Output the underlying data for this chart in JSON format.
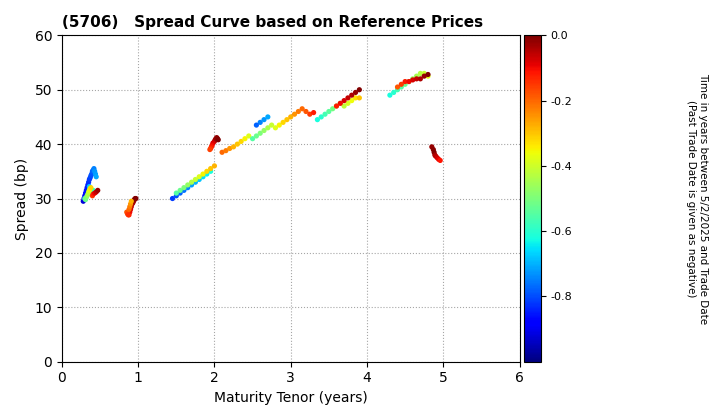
{
  "title": "(5706)   Spread Curve based on Reference Prices",
  "xlabel": "Maturity Tenor (years)",
  "ylabel": "Spread (bp)",
  "colorbar_label": "Time in years between 5/2/2025 and Trade Date\n(Past Trade Date is given as negative)",
  "xlim": [
    0,
    6
  ],
  "ylim": [
    0,
    60
  ],
  "xticks": [
    0,
    1,
    2,
    3,
    4,
    5,
    6
  ],
  "yticks": [
    0,
    10,
    20,
    30,
    40,
    50,
    60
  ],
  "cbar_ticks": [
    0.0,
    -0.2,
    -0.4,
    -0.6,
    -0.8
  ],
  "cmap": "jet",
  "vmin": -1.0,
  "vmax": 0.0,
  "points": [
    [
      0.28,
      29.5,
      -0.92
    ],
    [
      0.29,
      30.0,
      -0.9
    ],
    [
      0.3,
      30.5,
      -0.88
    ],
    [
      0.31,
      31.0,
      -0.87
    ],
    [
      0.32,
      31.5,
      -0.86
    ],
    [
      0.33,
      32.0,
      -0.85
    ],
    [
      0.34,
      32.5,
      -0.84
    ],
    [
      0.35,
      33.0,
      -0.83
    ],
    [
      0.36,
      33.5,
      -0.82
    ],
    [
      0.37,
      33.8,
      -0.81
    ],
    [
      0.38,
      34.2,
      -0.8
    ],
    [
      0.39,
      34.5,
      -0.79
    ],
    [
      0.4,
      35.0,
      -0.78
    ],
    [
      0.41,
      35.2,
      -0.77
    ],
    [
      0.42,
      35.5,
      -0.75
    ],
    [
      0.43,
      35.0,
      -0.73
    ],
    [
      0.44,
      34.5,
      -0.72
    ],
    [
      0.45,
      34.0,
      -0.71
    ],
    [
      0.36,
      32.2,
      -0.68
    ],
    [
      0.37,
      31.8,
      -0.66
    ],
    [
      0.38,
      31.5,
      -0.64
    ],
    [
      0.39,
      31.2,
      -0.62
    ],
    [
      0.4,
      31.0,
      -0.6
    ],
    [
      0.41,
      31.5,
      -0.58
    ],
    [
      0.3,
      30.0,
      -0.55
    ],
    [
      0.31,
      29.8,
      -0.52
    ],
    [
      0.32,
      30.2,
      -0.5
    ],
    [
      0.33,
      30.5,
      -0.47
    ],
    [
      0.34,
      30.8,
      -0.44
    ],
    [
      0.35,
      31.2,
      -0.41
    ],
    [
      0.36,
      31.5,
      -0.38
    ],
    [
      0.37,
      31.8,
      -0.35
    ],
    [
      0.38,
      32.0,
      -0.32
    ],
    [
      0.4,
      30.5,
      -0.15
    ],
    [
      0.41,
      30.8,
      -0.12
    ],
    [
      0.43,
      31.0,
      -0.09
    ],
    [
      0.45,
      31.2,
      -0.06
    ],
    [
      0.47,
      31.5,
      -0.03
    ],
    [
      0.88,
      27.0,
      -0.12
    ],
    [
      0.89,
      27.5,
      -0.1
    ],
    [
      0.9,
      28.0,
      -0.08
    ],
    [
      0.91,
      28.5,
      -0.06
    ],
    [
      0.92,
      29.0,
      -0.05
    ],
    [
      0.93,
      29.2,
      -0.04
    ],
    [
      0.94,
      29.5,
      -0.03
    ],
    [
      0.95,
      29.8,
      -0.02
    ],
    [
      0.96,
      30.0,
      -0.01
    ],
    [
      0.97,
      30.0,
      0.0
    ],
    [
      0.85,
      27.5,
      -0.18
    ],
    [
      0.86,
      27.2,
      -0.16
    ],
    [
      0.87,
      27.0,
      -0.14
    ],
    [
      0.88,
      28.0,
      -0.2
    ],
    [
      0.89,
      28.5,
      -0.22
    ],
    [
      0.9,
      29.0,
      -0.25
    ],
    [
      0.91,
      29.5,
      -0.28
    ],
    [
      1.45,
      30.0,
      -0.82
    ],
    [
      1.5,
      30.5,
      -0.8
    ],
    [
      1.55,
      31.0,
      -0.78
    ],
    [
      1.6,
      31.5,
      -0.76
    ],
    [
      1.65,
      32.0,
      -0.74
    ],
    [
      1.7,
      32.5,
      -0.72
    ],
    [
      1.75,
      33.0,
      -0.7
    ],
    [
      1.8,
      33.5,
      -0.68
    ],
    [
      1.85,
      34.0,
      -0.66
    ],
    [
      1.9,
      34.5,
      -0.64
    ],
    [
      1.95,
      35.0,
      -0.62
    ],
    [
      1.5,
      31.0,
      -0.55
    ],
    [
      1.55,
      31.5,
      -0.52
    ],
    [
      1.6,
      32.0,
      -0.5
    ],
    [
      1.65,
      32.5,
      -0.47
    ],
    [
      1.7,
      33.0,
      -0.44
    ],
    [
      1.75,
      33.5,
      -0.41
    ],
    [
      1.8,
      34.0,
      -0.38
    ],
    [
      1.85,
      34.5,
      -0.35
    ],
    [
      1.9,
      35.0,
      -0.32
    ],
    [
      1.95,
      35.5,
      -0.3
    ],
    [
      2.0,
      36.0,
      -0.28
    ],
    [
      2.0,
      40.5,
      -0.05
    ],
    [
      2.01,
      40.8,
      -0.04
    ],
    [
      2.02,
      41.0,
      -0.03
    ],
    [
      2.03,
      41.2,
      -0.02
    ],
    [
      2.04,
      41.0,
      -0.01
    ],
    [
      2.05,
      40.8,
      0.0
    ],
    [
      1.98,
      40.2,
      -0.08
    ],
    [
      1.97,
      39.8,
      -0.1
    ],
    [
      1.96,
      39.5,
      -0.12
    ],
    [
      1.95,
      39.2,
      -0.14
    ],
    [
      1.94,
      39.0,
      -0.16
    ],
    [
      2.1,
      38.5,
      -0.2
    ],
    [
      2.15,
      38.8,
      -0.22
    ],
    [
      2.2,
      39.2,
      -0.25
    ],
    [
      2.25,
      39.5,
      -0.28
    ],
    [
      2.3,
      40.0,
      -0.3
    ],
    [
      2.35,
      40.5,
      -0.32
    ],
    [
      2.4,
      41.0,
      -0.35
    ],
    [
      2.45,
      41.5,
      -0.38
    ],
    [
      2.5,
      41.0,
      -0.55
    ],
    [
      2.55,
      41.5,
      -0.52
    ],
    [
      2.6,
      42.0,
      -0.5
    ],
    [
      2.65,
      42.5,
      -0.47
    ],
    [
      2.7,
      43.0,
      -0.44
    ],
    [
      2.75,
      43.5,
      -0.41
    ],
    [
      2.6,
      44.0,
      -0.75
    ],
    [
      2.65,
      44.5,
      -0.73
    ],
    [
      2.7,
      45.0,
      -0.71
    ],
    [
      2.55,
      43.5,
      -0.78
    ],
    [
      2.8,
      43.0,
      -0.38
    ],
    [
      2.85,
      43.5,
      -0.35
    ],
    [
      2.9,
      44.0,
      -0.32
    ],
    [
      2.95,
      44.5,
      -0.3
    ],
    [
      3.0,
      45.0,
      -0.28
    ],
    [
      3.05,
      45.5,
      -0.25
    ],
    [
      3.1,
      46.0,
      -0.22
    ],
    [
      3.15,
      46.5,
      -0.2
    ],
    [
      3.2,
      46.0,
      -0.18
    ],
    [
      3.25,
      45.5,
      -0.15
    ],
    [
      3.3,
      45.8,
      -0.12
    ],
    [
      3.35,
      44.5,
      -0.62
    ],
    [
      3.4,
      45.0,
      -0.6
    ],
    [
      3.45,
      45.5,
      -0.57
    ],
    [
      3.5,
      46.0,
      -0.54
    ],
    [
      3.55,
      46.5,
      -0.51
    ],
    [
      3.6,
      47.0,
      -0.48
    ],
    [
      3.65,
      47.5,
      -0.45
    ],
    [
      3.7,
      47.0,
      -0.42
    ],
    [
      3.75,
      47.5,
      -0.39
    ],
    [
      3.8,
      48.0,
      -0.36
    ],
    [
      3.85,
      48.5,
      -0.33
    ],
    [
      3.9,
      48.5,
      -0.3
    ],
    [
      3.7,
      48.0,
      -0.08
    ],
    [
      3.75,
      48.5,
      -0.06
    ],
    [
      3.8,
      49.0,
      -0.04
    ],
    [
      3.85,
      49.5,
      -0.02
    ],
    [
      3.9,
      50.0,
      0.0
    ],
    [
      3.65,
      47.5,
      -0.1
    ],
    [
      3.6,
      47.0,
      -0.12
    ],
    [
      4.3,
      49.0,
      -0.62
    ],
    [
      4.35,
      49.5,
      -0.6
    ],
    [
      4.4,
      50.0,
      -0.57
    ],
    [
      4.45,
      50.5,
      -0.55
    ],
    [
      4.5,
      51.0,
      -0.52
    ],
    [
      4.55,
      51.5,
      -0.5
    ],
    [
      4.6,
      52.0,
      -0.47
    ],
    [
      4.65,
      52.5,
      -0.45
    ],
    [
      4.7,
      53.0,
      -0.43
    ],
    [
      4.75,
      53.0,
      -0.41
    ],
    [
      4.8,
      52.5,
      -0.38
    ],
    [
      4.4,
      50.5,
      -0.18
    ],
    [
      4.45,
      51.0,
      -0.15
    ],
    [
      4.5,
      51.5,
      -0.12
    ],
    [
      4.55,
      51.5,
      -0.1
    ],
    [
      4.6,
      51.8,
      -0.08
    ],
    [
      4.65,
      52.0,
      -0.06
    ],
    [
      4.7,
      52.0,
      -0.04
    ],
    [
      4.75,
      52.5,
      -0.02
    ],
    [
      4.8,
      52.8,
      0.0
    ],
    [
      4.85,
      39.5,
      -0.02
    ],
    [
      4.87,
      39.0,
      -0.01
    ],
    [
      4.88,
      38.5,
      0.0
    ],
    [
      4.89,
      38.0,
      -0.03
    ],
    [
      4.9,
      37.8,
      -0.05
    ],
    [
      4.92,
      37.5,
      -0.07
    ],
    [
      4.94,
      37.2,
      -0.09
    ],
    [
      4.96,
      37.0,
      -0.11
    ]
  ]
}
